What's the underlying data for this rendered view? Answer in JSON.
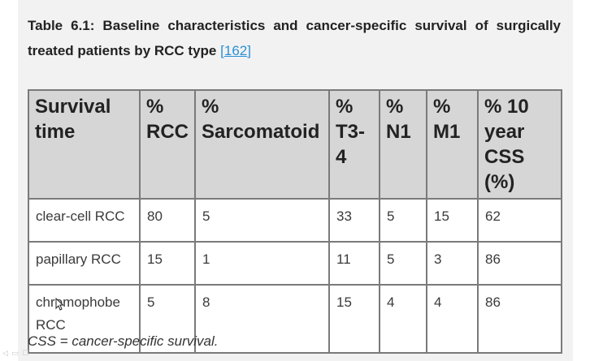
{
  "caption": {
    "text": "Table 6.1: Baseline characteristics and cancer-specific survival of surgically treated patients by RCC type",
    "ref_open": "[",
    "ref_link": "162",
    "ref_close": "]",
    "link_color": "#2b8fd6"
  },
  "table": {
    "headers": [
      "Survival time",
      "% RCC",
      "% Sarcomatoid",
      "% T3-4",
      "% N1",
      "% M1",
      "% 10 year CSS (%)"
    ],
    "rows": [
      [
        "clear-cell RCC",
        "80",
        "5",
        "33",
        "5",
        "15",
        "62"
      ],
      [
        "papillary RCC",
        "15",
        "1",
        "11",
        "5",
        "3",
        "86"
      ],
      [
        "chromophobe RCC",
        "5",
        "8",
        "15",
        "4",
        "4",
        "86"
      ]
    ],
    "header_bg": "#d6d6d6",
    "border_color": "#7a7a7a"
  },
  "footnote": "CSS = cancer-specific survival.",
  "icons": {
    "cursor": "mouse-pointer-icon"
  }
}
